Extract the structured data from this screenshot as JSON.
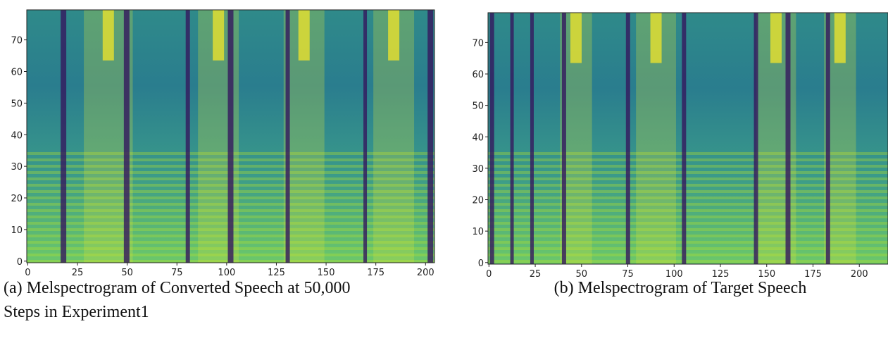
{
  "figures": [
    {
      "xlim": [
        -0.5,
        204.5
      ],
      "ylim": [
        -0.5,
        79.5
      ],
      "xticks": [
        0,
        25,
        50,
        75,
        100,
        125,
        150,
        175,
        200
      ],
      "yticks": [
        0,
        10,
        20,
        30,
        40,
        50,
        60,
        70
      ],
      "caption": [
        "(a) Melspectrogram of Converted Speech at 50,000",
        "Steps in Experiment1"
      ]
    },
    {
      "xlim": [
        -0.5,
        215.5
      ],
      "ylim": [
        -0.5,
        79.5
      ],
      "xticks": [
        0,
        25,
        50,
        75,
        100,
        125,
        150,
        175,
        200
      ],
      "yticks": [
        0,
        10,
        20,
        30,
        40,
        50,
        60,
        70
      ],
      "caption": [
        "(b) Melspectrogram of Target Speech"
      ]
    }
  ]
}
